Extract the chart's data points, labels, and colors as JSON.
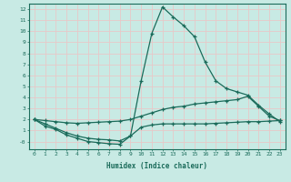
{
  "xlabel": "Humidex (Indice chaleur)",
  "background_color": "#c8eae4",
  "line_color": "#1a6b5a",
  "grid_color": "#e8c8c8",
  "xlim": [
    -0.5,
    23.5
  ],
  "ylim": [
    -0.7,
    12.5
  ],
  "xticks": [
    0,
    1,
    2,
    3,
    4,
    5,
    6,
    7,
    8,
    9,
    10,
    11,
    12,
    13,
    14,
    15,
    16,
    17,
    18,
    19,
    20,
    21,
    22,
    23
  ],
  "yticks": [
    0,
    1,
    2,
    3,
    4,
    5,
    6,
    7,
    8,
    9,
    10,
    11,
    12
  ],
  "ytick_labels": [
    "-0",
    "1",
    "2",
    "3",
    "4",
    "5",
    "6",
    "7",
    "8",
    "9",
    "10",
    "11",
    "12"
  ],
  "line1_x": [
    0,
    1,
    2,
    3,
    4,
    5,
    6,
    7,
    8,
    9,
    10,
    11,
    12,
    13,
    14,
    15,
    16,
    17,
    18,
    19,
    20,
    21,
    22,
    23
  ],
  "line1_y": [
    2.0,
    1.6,
    1.2,
    0.8,
    0.5,
    0.3,
    0.2,
    0.15,
    0.05,
    0.5,
    5.5,
    9.8,
    12.2,
    11.3,
    10.5,
    9.5,
    7.2,
    5.5,
    4.8,
    4.5,
    4.2,
    3.3,
    2.5,
    1.8
  ],
  "line2_x": [
    0,
    1,
    2,
    3,
    4,
    5,
    6,
    7,
    8,
    9,
    10,
    11,
    12,
    13,
    14,
    15,
    16,
    17,
    18,
    19,
    20,
    21,
    22,
    23
  ],
  "line2_y": [
    2.0,
    1.9,
    1.8,
    1.7,
    1.65,
    1.7,
    1.75,
    1.8,
    1.85,
    2.0,
    2.3,
    2.6,
    2.9,
    3.1,
    3.2,
    3.4,
    3.5,
    3.6,
    3.7,
    3.8,
    4.1,
    3.2,
    2.3,
    1.9
  ],
  "line3_x": [
    0,
    1,
    2,
    3,
    4,
    5,
    6,
    7,
    8,
    9,
    10,
    11,
    12,
    13,
    14,
    15,
    16,
    17,
    18,
    19,
    20,
    21,
    22,
    23
  ],
  "line3_y": [
    2.0,
    1.4,
    1.1,
    0.6,
    0.3,
    0.0,
    -0.1,
    -0.2,
    -0.25,
    0.5,
    1.3,
    1.5,
    1.6,
    1.6,
    1.6,
    1.6,
    1.6,
    1.65,
    1.7,
    1.75,
    1.8,
    1.8,
    1.85,
    1.9
  ]
}
